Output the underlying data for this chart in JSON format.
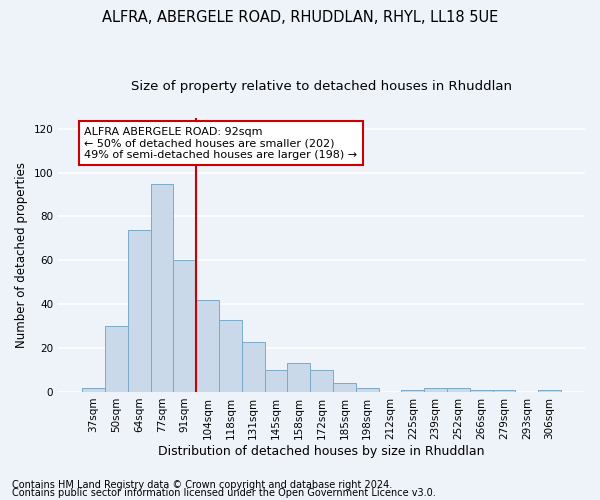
{
  "title1": "ALFRA, ABERGELE ROAD, RHUDDLAN, RHYL, LL18 5UE",
  "title2": "Size of property relative to detached houses in Rhuddlan",
  "xlabel": "Distribution of detached houses by size in Rhuddlan",
  "ylabel": "Number of detached properties",
  "footnote1": "Contains HM Land Registry data © Crown copyright and database right 2024.",
  "footnote2": "Contains public sector information licensed under the Open Government Licence v3.0.",
  "bar_labels": [
    "37sqm",
    "50sqm",
    "64sqm",
    "77sqm",
    "91sqm",
    "104sqm",
    "118sqm",
    "131sqm",
    "145sqm",
    "158sqm",
    "172sqm",
    "185sqm",
    "198sqm",
    "212sqm",
    "225sqm",
    "239sqm",
    "252sqm",
    "266sqm",
    "279sqm",
    "293sqm",
    "306sqm"
  ],
  "bar_values": [
    2,
    30,
    74,
    95,
    60,
    42,
    33,
    23,
    10,
    13,
    10,
    4,
    2,
    0,
    1,
    2,
    2,
    1,
    1,
    0,
    1
  ],
  "bar_color": "#c9d9ea",
  "bar_edge_color": "#7aaac8",
  "vline_color": "#cc0000",
  "annotation_title": "ALFRA ABERGELE ROAD: 92sqm",
  "annotation_line1": "← 50% of detached houses are smaller (202)",
  "annotation_line2": "49% of semi-detached houses are larger (198) →",
  "annotation_box_facecolor": "#ffffff",
  "annotation_box_edgecolor": "#cc0000",
  "ylim": [
    0,
    125
  ],
  "yticks": [
    0,
    20,
    40,
    60,
    80,
    100,
    120
  ],
  "background_color": "#eef2f9",
  "grid_color": "#ffffff",
  "title1_fontsize": 10.5,
  "title2_fontsize": 9.5,
  "xlabel_fontsize": 9,
  "ylabel_fontsize": 8.5,
  "tick_fontsize": 7.5,
  "annotation_fontsize": 8,
  "footnote_fontsize": 7
}
